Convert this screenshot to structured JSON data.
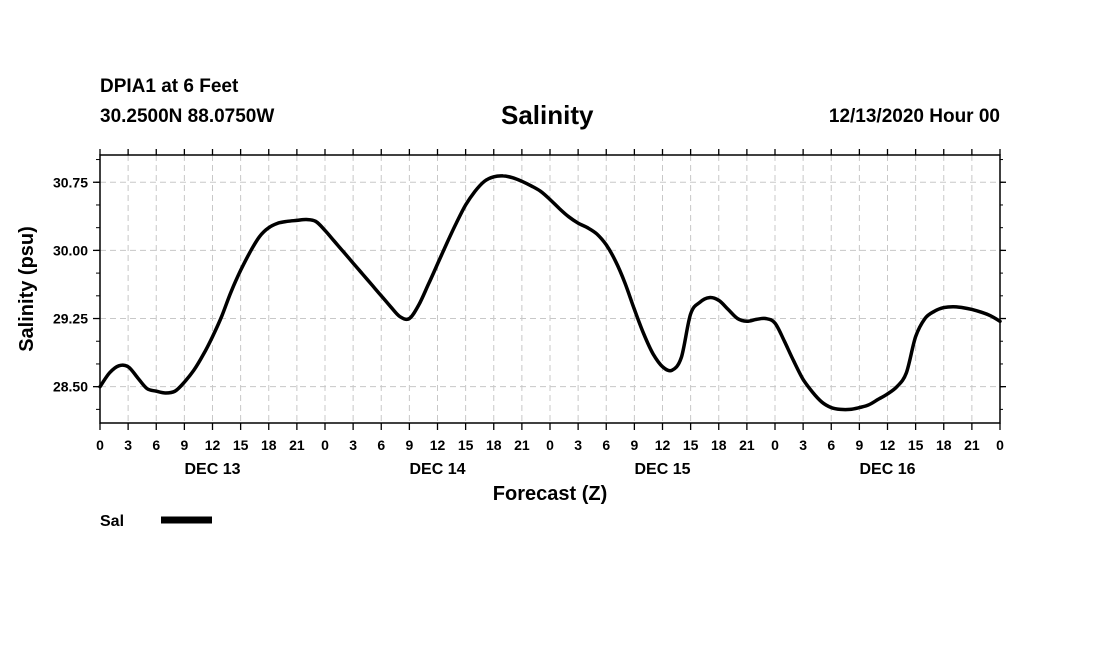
{
  "header": {
    "station": "DPIA1 at 6 Feet",
    "coords": "30.2500N 88.0750W",
    "title": "Salinity",
    "timestamp": "12/13/2020 Hour 00"
  },
  "chart_data": {
    "type": "line",
    "title": "Salinity",
    "xlabel": "Forecast (Z)",
    "ylabel": "Salinity (psu)",
    "x_unit": "hours from 12/13/2020 00Z",
    "xlim": [
      0,
      96
    ],
    "ylim": [
      28.1,
      31.05
    ],
    "grid": true,
    "x_tick_labels": [
      "0",
      "3",
      "6",
      "9",
      "12",
      "15",
      "18",
      "21",
      "0",
      "3",
      "6",
      "9",
      "12",
      "15",
      "18",
      "21",
      "0",
      "3",
      "6",
      "9",
      "12",
      "15",
      "18",
      "21",
      "0",
      "3",
      "6",
      "9",
      "12",
      "15",
      "18",
      "21",
      "0"
    ],
    "y_ticks": [
      "28.50",
      "29.25",
      "30.00",
      "30.75"
    ],
    "day_labels": [
      "DEC 13",
      "DEC 14",
      "DEC 15",
      "DEC 16"
    ],
    "legend": {
      "placement": "bottom-left",
      "entries": [
        "Sal"
      ]
    },
    "series": [
      {
        "name": "Sal",
        "color": "#000000",
        "x": [
          0,
          1,
          2,
          3,
          4,
          5,
          6,
          7,
          8,
          9,
          10,
          11,
          12,
          13,
          14,
          15,
          16,
          17,
          18,
          19,
          20,
          21,
          22,
          23,
          24,
          25,
          26,
          27,
          28,
          29,
          30,
          31,
          32,
          33,
          34,
          35,
          36,
          37,
          38,
          39,
          40,
          41,
          42,
          43,
          44,
          45,
          46,
          47,
          48,
          49,
          50,
          51,
          52,
          53,
          54,
          55,
          56,
          57,
          58,
          59,
          60,
          61,
          62,
          63,
          64,
          65,
          66,
          67,
          68,
          69,
          70,
          71,
          72,
          73,
          74,
          75,
          76,
          77,
          78,
          79,
          80,
          81,
          82,
          83,
          84,
          85,
          86,
          87,
          88,
          89,
          90,
          91,
          92,
          93,
          94,
          95,
          96
        ],
        "y": [
          28.5,
          28.65,
          28.73,
          28.72,
          28.6,
          28.48,
          28.45,
          28.43,
          28.45,
          28.55,
          28.68,
          28.85,
          29.05,
          29.28,
          29.55,
          29.78,
          29.98,
          30.15,
          30.25,
          30.3,
          30.32,
          30.33,
          30.34,
          30.32,
          30.22,
          30.1,
          29.98,
          29.86,
          29.74,
          29.62,
          29.5,
          29.38,
          29.27,
          29.25,
          29.4,
          29.62,
          29.85,
          30.08,
          30.3,
          30.5,
          30.65,
          30.76,
          30.81,
          30.82,
          30.8,
          30.76,
          30.71,
          30.65,
          30.56,
          30.46,
          30.37,
          30.3,
          30.25,
          30.18,
          30.06,
          29.88,
          29.64,
          29.35,
          29.08,
          28.86,
          28.72,
          28.68,
          28.82,
          29.3,
          29.43,
          29.48,
          29.45,
          29.35,
          29.25,
          29.22,
          29.24,
          29.25,
          29.2,
          29.0,
          28.78,
          28.58,
          28.44,
          28.33,
          28.27,
          28.25,
          28.25,
          28.27,
          28.3,
          28.36,
          28.42,
          28.5,
          28.65,
          29.05,
          29.25,
          29.33,
          29.37,
          29.38,
          29.37,
          29.35,
          29.32,
          29.28,
          29.22
        ]
      }
    ]
  }
}
